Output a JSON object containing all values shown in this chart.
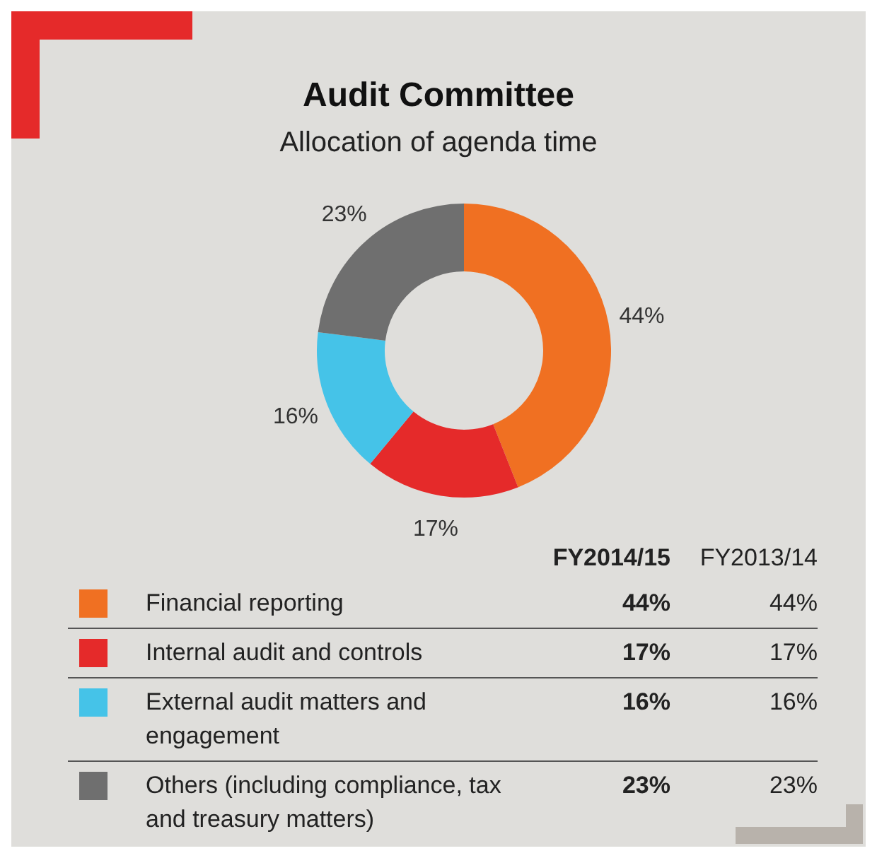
{
  "chart_data": {
    "type": "donut",
    "title": "Audit Committee",
    "subtitle": "Allocation of agenda time",
    "categories": [
      "Financial reporting",
      "Internal audit and controls",
      "External audit matters and engagement",
      "Others (including compliance, tax and treasury matters)"
    ],
    "colors": [
      "#f07022",
      "#e52a2a",
      "#45c3e8",
      "#6f6f6f"
    ],
    "series": [
      {
        "name": "FY2014/15",
        "values": [
          44,
          17,
          16,
          23
        ],
        "value_labels": [
          "44%",
          "17%",
          "16%",
          "23%"
        ]
      }
    ],
    "annotations": [
      "FY2013/14",
      "44%",
      "17%",
      "16%",
      "23%"
    ],
    "legend": "bottom"
  }
}
